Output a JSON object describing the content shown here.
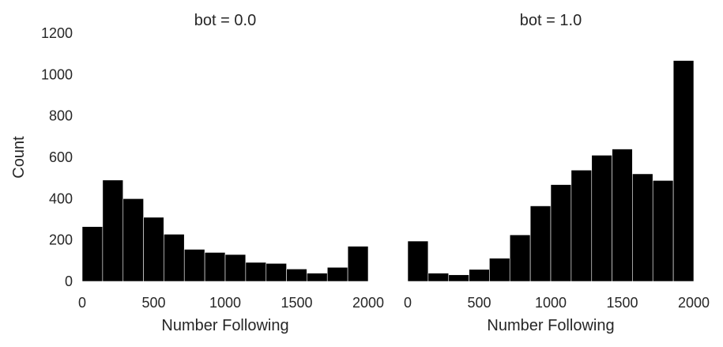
{
  "chart_data": [
    {
      "type": "bar",
      "title": "bot = 0.0",
      "xlabel": "Number Following",
      "ylabel": "Count",
      "bin_edges": [
        0,
        143,
        286,
        429,
        571,
        714,
        857,
        1000,
        1143,
        1286,
        1429,
        1571,
        1714,
        1857,
        2000
      ],
      "values": [
        265,
        490,
        400,
        310,
        228,
        155,
        140,
        130,
        92,
        87,
        60,
        40,
        68,
        170
      ],
      "xlim": [
        0,
        2000
      ],
      "ylim": [
        0,
        1200
      ],
      "xticks": [
        "0",
        "500",
        "1000",
        "1500",
        "2000"
      ],
      "yticks": [
        "0",
        "200",
        "400",
        "600",
        "800",
        "1000",
        "1200"
      ],
      "bar_color": "#000000",
      "grid": false
    },
    {
      "type": "bar",
      "title": "bot = 1.0",
      "xlabel": "Number Following",
      "ylabel": "",
      "bin_edges": [
        0,
        143,
        286,
        429,
        571,
        714,
        857,
        1000,
        1143,
        1286,
        1429,
        1571,
        1714,
        1857,
        2000
      ],
      "values": [
        195,
        40,
        32,
        58,
        112,
        225,
        365,
        468,
        538,
        610,
        640,
        520,
        488,
        1068
      ],
      "xlim": [
        0,
        2000
      ],
      "ylim": [
        0,
        1200
      ],
      "xticks": [
        "0",
        "500",
        "1000",
        "1500",
        "2000"
      ],
      "yticks": [],
      "bar_color": "#000000",
      "grid": false
    }
  ]
}
